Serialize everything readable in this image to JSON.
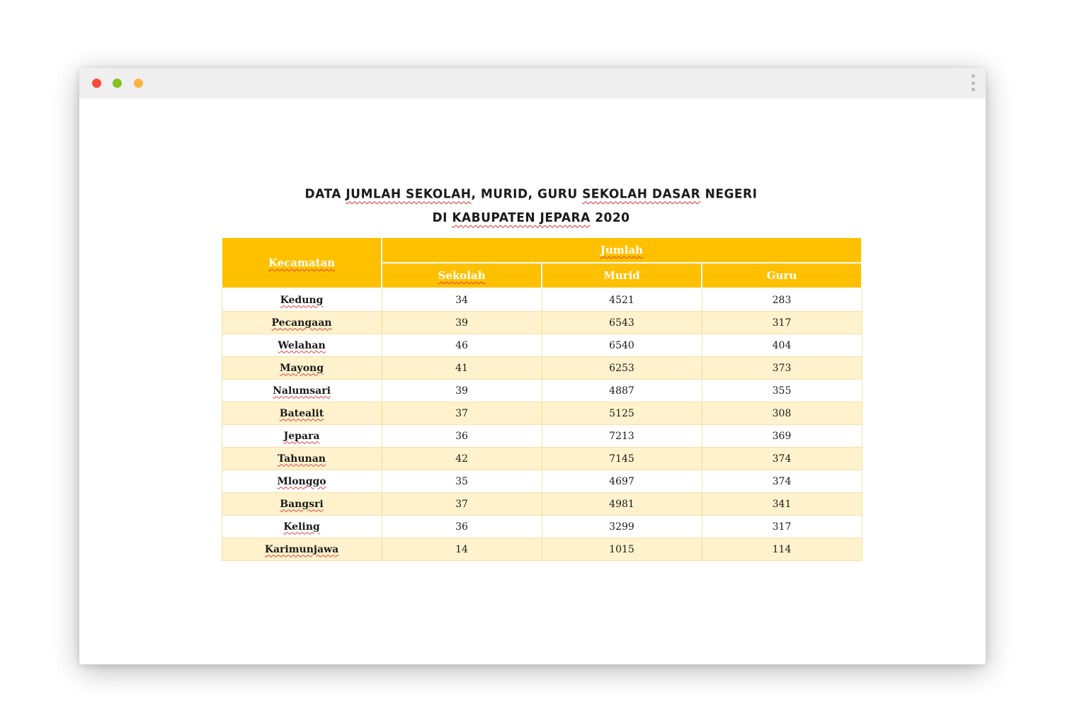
{
  "window": {
    "controls": {
      "close_color": "#ff4a3d",
      "minimize_color": "#80c41c",
      "maximize_color": "#ffb340"
    },
    "menu_icon": "kebab-menu-icon"
  },
  "document": {
    "title_line1_parts": [
      "DATA ",
      "JUMLAH SEKOLAH",
      ", MURID, GURU ",
      "SEKOLAH DASAR",
      " NEGERI"
    ],
    "title_line2_parts": [
      "DI ",
      "KABUPATEN JEPARA",
      " 2020"
    ],
    "table": {
      "header": {
        "kecamatan": "Kecamatan",
        "jumlah": "Jumlah",
        "sekolah": "Sekolah",
        "murid": "Murid",
        "guru": "Guru"
      },
      "rows": [
        {
          "kecamatan": "Kedung",
          "sekolah": "34",
          "murid": "4521",
          "guru": "283"
        },
        {
          "kecamatan": "Pecangaan",
          "sekolah": "39",
          "murid": "6543",
          "guru": "317"
        },
        {
          "kecamatan": "Welahan",
          "sekolah": "46",
          "murid": "6540",
          "guru": "404"
        },
        {
          "kecamatan": "Mayong",
          "sekolah": "41",
          "murid": "6253",
          "guru": "373"
        },
        {
          "kecamatan": "Nalumsari",
          "sekolah": "39",
          "murid": "4887",
          "guru": "355"
        },
        {
          "kecamatan": "Batealit",
          "sekolah": "37",
          "murid": "5125",
          "guru": "308"
        },
        {
          "kecamatan": "Jepara",
          "sekolah": "36",
          "murid": "7213",
          "guru": "369"
        },
        {
          "kecamatan": "Tahunan",
          "sekolah": "42",
          "murid": "7145",
          "guru": "374"
        },
        {
          "kecamatan": "Mlonggo",
          "sekolah": "35",
          "murid": "4697",
          "guru": "374"
        },
        {
          "kecamatan": "Bangsri",
          "sekolah": "37",
          "murid": "4981",
          "guru": "341"
        },
        {
          "kecamatan": "Keling",
          "sekolah": "36",
          "murid": "3299",
          "guru": "317"
        },
        {
          "kecamatan": "Karimunjawa",
          "sekolah": "14",
          "murid": "1015",
          "guru": "114"
        }
      ]
    }
  },
  "colors": {
    "header_bg": "#ffc000",
    "stripe_bg": "#fff2cc",
    "titlebar_bg": "#efefef"
  }
}
